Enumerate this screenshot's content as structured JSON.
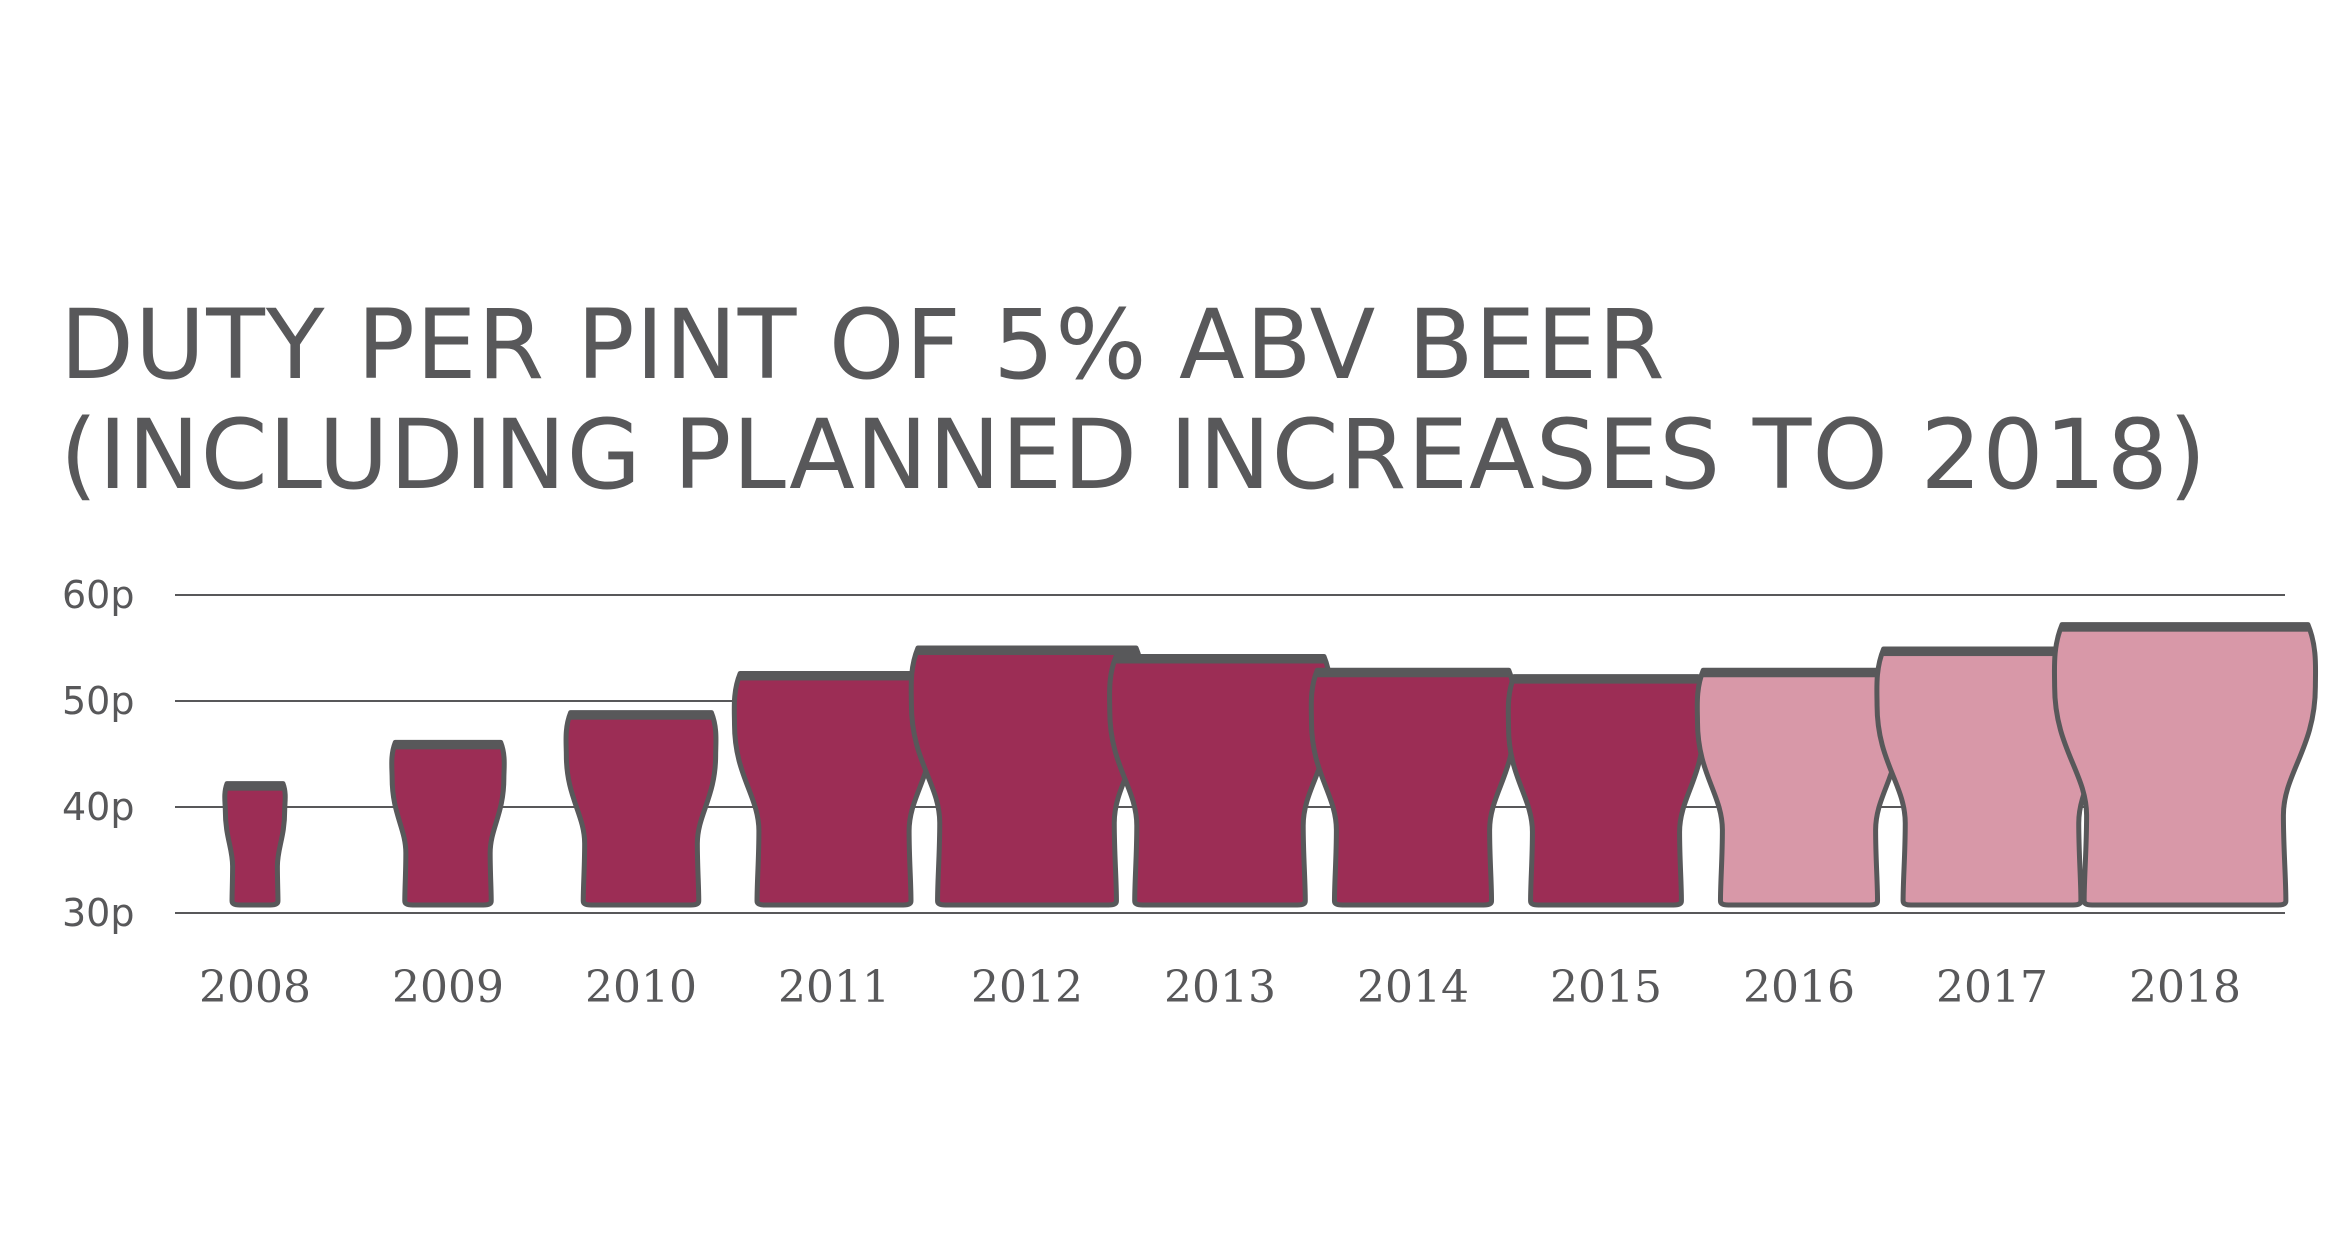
{
  "title": {
    "line1": "DUTY PER PINT OF 5% ABV BEER",
    "line2": "(INCLUDING PLANNED INCREASES TO 2018)"
  },
  "colors": {
    "actual": "#9c2d55",
    "planned": "#d898a8",
    "outline": "#58585a",
    "grid": "#58585a",
    "text": "#58585a"
  },
  "chart_data": {
    "type": "bar",
    "title": "DUTY PER PINT OF 5% ABV BEER (INCLUDING PLANNED INCREASES TO 2018)",
    "xlabel": "",
    "ylabel": "",
    "ylim": [
      30,
      60
    ],
    "yticks": [
      "30p",
      "40p",
      "50p",
      "60p"
    ],
    "ytick_values": [
      30,
      40,
      50,
      60
    ],
    "grid": true,
    "mark": "pint-glass",
    "categories": [
      "2008",
      "2009",
      "2010",
      "2011",
      "2012",
      "2013",
      "2014",
      "2015",
      "2016",
      "2017",
      "2018"
    ],
    "values": [
      42.2,
      46.1,
      48.9,
      52.6,
      55.0,
      54.2,
      52.9,
      52.3,
      52.9,
      54.9,
      57.2
    ],
    "status": [
      "actual",
      "actual",
      "actual",
      "actual",
      "actual",
      "actual",
      "actual",
      "actual",
      "planned",
      "planned",
      "planned"
    ]
  }
}
